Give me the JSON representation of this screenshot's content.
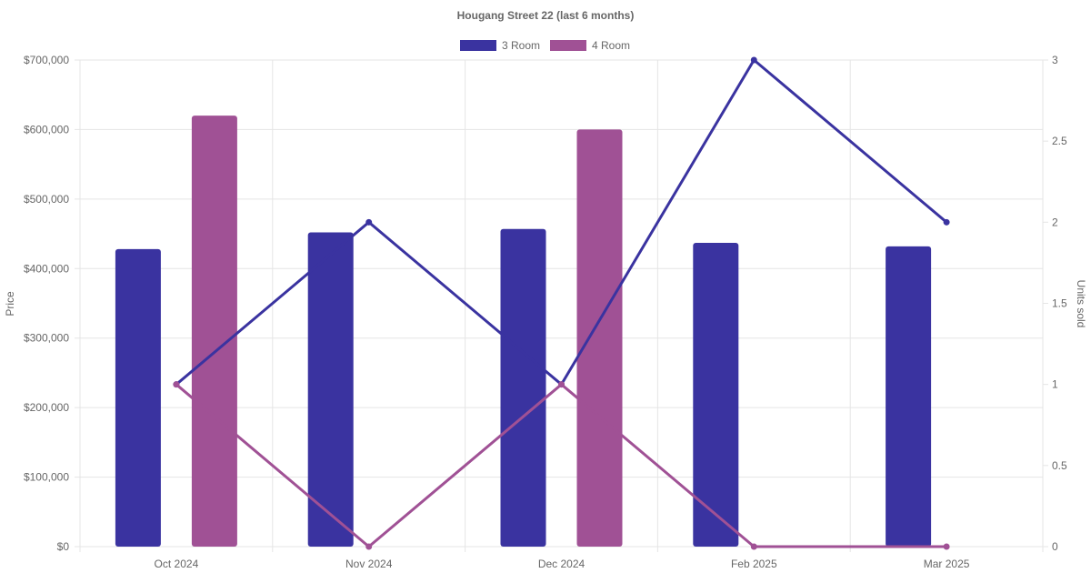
{
  "chart_data": {
    "type": "bar",
    "title": "Hougang Street 22 (last 6 months)",
    "categories": [
      "Oct 2024",
      "Nov 2024",
      "Dec 2024",
      "Feb 2025",
      "Mar 2025"
    ],
    "ylabel": "Price",
    "y2label": "Units sold",
    "ylim": [
      0,
      700000
    ],
    "y2lim": [
      0,
      3
    ],
    "y_ticks": [
      "$0",
      "$100,000",
      "$200,000",
      "$300,000",
      "$400,000",
      "$500,000",
      "$600,000",
      "$700,000"
    ],
    "y2_ticks": [
      "0",
      "0.5",
      "1",
      "1.5",
      "2",
      "2.5",
      "3"
    ],
    "grid": true,
    "legend_position": "top-center",
    "series": [
      {
        "name": "3 Room",
        "color": "#3a33a0",
        "price": [
          428000,
          452000,
          457000,
          437000,
          432000
        ],
        "units_sold": [
          1,
          2,
          1,
          3,
          2
        ]
      },
      {
        "name": "4 Room",
        "color": "#a05195",
        "price": [
          620000,
          null,
          600000,
          null,
          null
        ],
        "units_sold": [
          1,
          0,
          1,
          0,
          0
        ]
      }
    ]
  }
}
